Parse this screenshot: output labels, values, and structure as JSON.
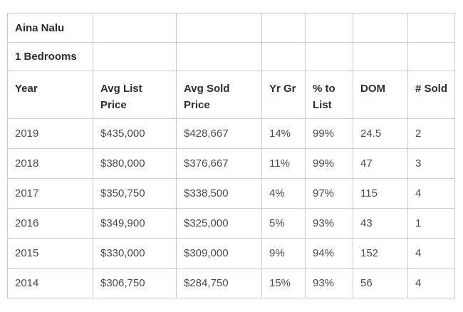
{
  "table": {
    "title": "Aina Nalu",
    "subtitle": "1 Bedrooms",
    "columns": [
      "Year",
      "Avg List Price",
      "Avg Sold Price",
      "Yr Gr",
      "% to List",
      "DOM",
      "# Sold"
    ],
    "rows": [
      [
        "2019",
        "$435,000",
        "$428,667",
        "14%",
        "99%",
        "24.5",
        "2"
      ],
      [
        "2018",
        "$380,000",
        "$376,667",
        "11%",
        "99%",
        "47",
        "3"
      ],
      [
        "2017",
        "$350,750",
        "$338,500",
        "4%",
        "97%",
        "115",
        "4"
      ],
      [
        "2016",
        "$349,900",
        "$325,000",
        "5%",
        "93%",
        "43",
        "1"
      ],
      [
        "2015",
        "$330,000",
        "$309,000",
        "9%",
        "94%",
        "152",
        "4"
      ],
      [
        "2014",
        "$306,750",
        "$284,750",
        "15%",
        "93%",
        "56",
        "4"
      ]
    ]
  },
  "chart_data": {
    "type": "table",
    "title": "Aina Nalu",
    "subtitle": "1 Bedrooms",
    "columns": [
      "Year",
      "Avg List Price",
      "Avg Sold Price",
      "Yr Gr",
      "% to List",
      "DOM",
      "# Sold"
    ],
    "rows": [
      {
        "year": 2019,
        "avg_list_price": 435000,
        "avg_sold_price": 428667,
        "yr_gr_pct": 14,
        "pct_to_list": 99,
        "dom": 24.5,
        "num_sold": 2
      },
      {
        "year": 2018,
        "avg_list_price": 380000,
        "avg_sold_price": 376667,
        "yr_gr_pct": 11,
        "pct_to_list": 99,
        "dom": 47,
        "num_sold": 3
      },
      {
        "year": 2017,
        "avg_list_price": 350750,
        "avg_sold_price": 338500,
        "yr_gr_pct": 4,
        "pct_to_list": 97,
        "dom": 115,
        "num_sold": 4
      },
      {
        "year": 2016,
        "avg_list_price": 349900,
        "avg_sold_price": 325000,
        "yr_gr_pct": 5,
        "pct_to_list": 93,
        "dom": 43,
        "num_sold": 1
      },
      {
        "year": 2015,
        "avg_list_price": 330000,
        "avg_sold_price": 309000,
        "yr_gr_pct": 9,
        "pct_to_list": 94,
        "dom": 152,
        "num_sold": 4
      },
      {
        "year": 2014,
        "avg_list_price": 306750,
        "avg_sold_price": 284750,
        "yr_gr_pct": 15,
        "pct_to_list": 93,
        "dom": 56,
        "num_sold": 4
      }
    ]
  },
  "colors": {
    "border": "#cccccc",
    "header_text": "#2d2d2d",
    "body_text": "#4a4a4a",
    "background": "#ffffff"
  }
}
